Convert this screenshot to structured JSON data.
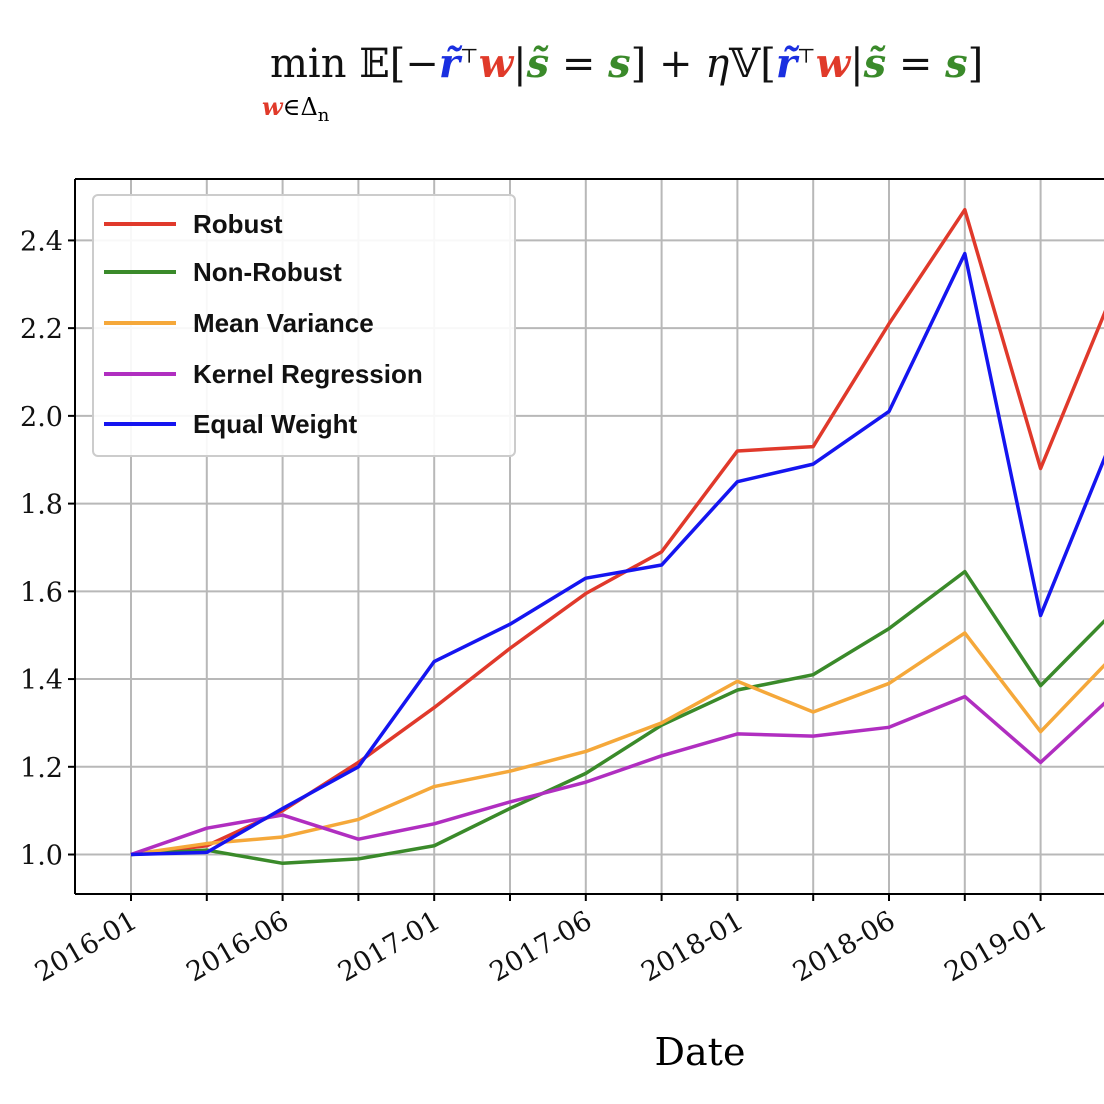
{
  "chart_data": {
    "type": "line",
    "title": "min_{w∈Δn} E[−r̃ᵀw | s̃ = s] + ηV[r̃ᵀw | s̃ = s]",
    "title_parts": {
      "min": "min",
      "sub_w": "w",
      "sub_rest": "∈Δ",
      "sub_n": "n",
      "E": "𝔼[−",
      "r": "r̃",
      "T": "⊤",
      "w": "w",
      "bar": "|",
      "s_tilde": "s̃",
      "eq": " = ",
      "s": "s",
      "close_plus": "] + ",
      "eta": "η",
      "V": "𝕍["
    },
    "xlabel": "Date",
    "ylabel": "",
    "x": [
      0,
      1,
      2,
      3,
      4,
      5,
      6,
      7,
      8,
      9,
      10,
      11,
      12,
      13
    ],
    "xticks": [
      {
        "x": 0,
        "label": "2016-01"
      },
      {
        "x": 2,
        "label": "2016-06"
      },
      {
        "x": 4,
        "label": "2017-01"
      },
      {
        "x": 6,
        "label": "2017-06"
      },
      {
        "x": 8,
        "label": "2018-01"
      },
      {
        "x": 10,
        "label": "2018-06"
      },
      {
        "x": 12,
        "label": "2019-01"
      }
    ],
    "yticks": [
      1.0,
      1.2,
      1.4,
      1.6,
      1.8,
      2.0,
      2.2,
      2.4
    ],
    "ytick_labels": [
      "1.0",
      "1.2",
      "1.4",
      "1.6",
      "1.8",
      "2.0",
      "2.2",
      "2.4"
    ],
    "ylim": [
      0.91,
      2.54
    ],
    "grid": true,
    "legend_position": "top-left",
    "series": [
      {
        "name": "Robust",
        "color": "#e0392b",
        "values": [
          1.0,
          1.02,
          1.1,
          1.21,
          1.335,
          1.47,
          1.595,
          1.69,
          1.92,
          1.93,
          2.21,
          2.47,
          1.88,
          2.3
        ]
      },
      {
        "name": "Non-Robust",
        "color": "#3a8a2a",
        "values": [
          1.0,
          1.01,
          0.98,
          0.99,
          1.02,
          1.105,
          1.185,
          1.295,
          1.375,
          1.41,
          1.515,
          1.645,
          1.385,
          1.56
        ]
      },
      {
        "name": "Mean Variance",
        "color": "#f5a83a",
        "values": [
          1.0,
          1.025,
          1.04,
          1.08,
          1.155,
          1.19,
          1.235,
          1.3,
          1.395,
          1.325,
          1.39,
          1.505,
          1.28,
          1.46
        ]
      },
      {
        "name": "Kernel Regression",
        "color": "#b02ec0",
        "values": [
          1.0,
          1.06,
          1.09,
          1.035,
          1.07,
          1.12,
          1.165,
          1.225,
          1.275,
          1.27,
          1.29,
          1.36,
          1.21,
          1.37
        ]
      },
      {
        "name": "Equal Weight",
        "color": "#1515f0",
        "values": [
          1.0,
          1.005,
          1.105,
          1.2,
          1.44,
          1.525,
          1.63,
          1.66,
          1.85,
          1.89,
          2.01,
          2.37,
          1.545,
          1.97
        ]
      }
    ]
  }
}
